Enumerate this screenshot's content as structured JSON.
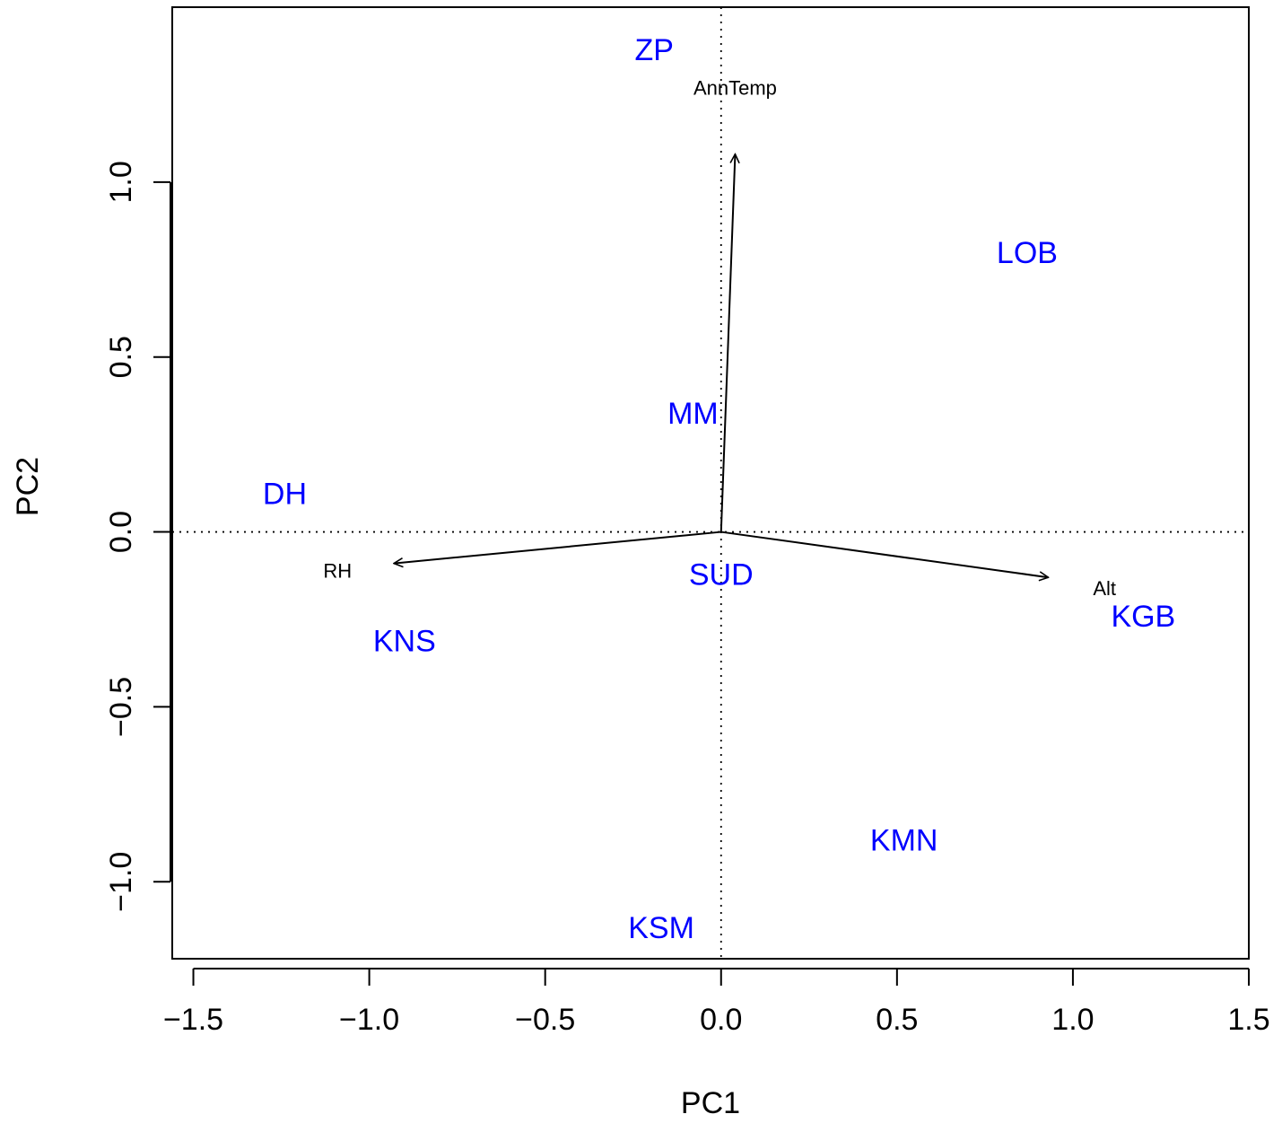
{
  "chart_data": {
    "type": "scatter",
    "xlabel": "PC1",
    "ylabel": "PC2",
    "xlim": [
      -1.56,
      1.5
    ],
    "ylim": [
      -1.22,
      1.5
    ],
    "x_ticks": [
      -1.5,
      -1.0,
      -0.5,
      0.0,
      0.5,
      1.0,
      1.5
    ],
    "x_tick_labels": [
      "−1.5",
      "−1.0",
      "−0.5",
      "0.0",
      "0.5",
      "1.0",
      "1.5"
    ],
    "y_ticks": [
      -1.0,
      -0.5,
      0.0,
      0.5,
      1.0
    ],
    "y_tick_labels": [
      "−1.0",
      "−0.5",
      "0.0",
      "0.5",
      "1.0"
    ],
    "grid": false,
    "reference_lines": {
      "x": 0,
      "y": 0,
      "style": "dotted"
    },
    "site_color": "#0000ff",
    "sites": [
      {
        "label": "ZP",
        "x": -0.19,
        "y": 1.38
      },
      {
        "label": "LOB",
        "x": 0.87,
        "y": 0.8
      },
      {
        "label": "MM",
        "x": -0.08,
        "y": 0.34
      },
      {
        "label": "DH",
        "x": -1.24,
        "y": 0.11
      },
      {
        "label": "SUD",
        "x": 0.0,
        "y": -0.12
      },
      {
        "label": "KGB",
        "x": 1.2,
        "y": -0.24
      },
      {
        "label": "KNS",
        "x": -0.9,
        "y": -0.31
      },
      {
        "label": "KMN",
        "x": 0.52,
        "y": -0.88
      },
      {
        "label": "KSM",
        "x": -0.17,
        "y": -1.13
      }
    ],
    "vectors": [
      {
        "label": "AnnTemp",
        "x": 0.04,
        "y": 1.08,
        "label_x": 0.04,
        "label_y": 1.27
      },
      {
        "label": "RH",
        "x": -0.93,
        "y": -0.09,
        "label_x": -1.09,
        "label_y": -0.11
      },
      {
        "label": "Alt",
        "x": 0.93,
        "y": -0.13,
        "label_x": 1.09,
        "label_y": -0.16
      }
    ]
  }
}
